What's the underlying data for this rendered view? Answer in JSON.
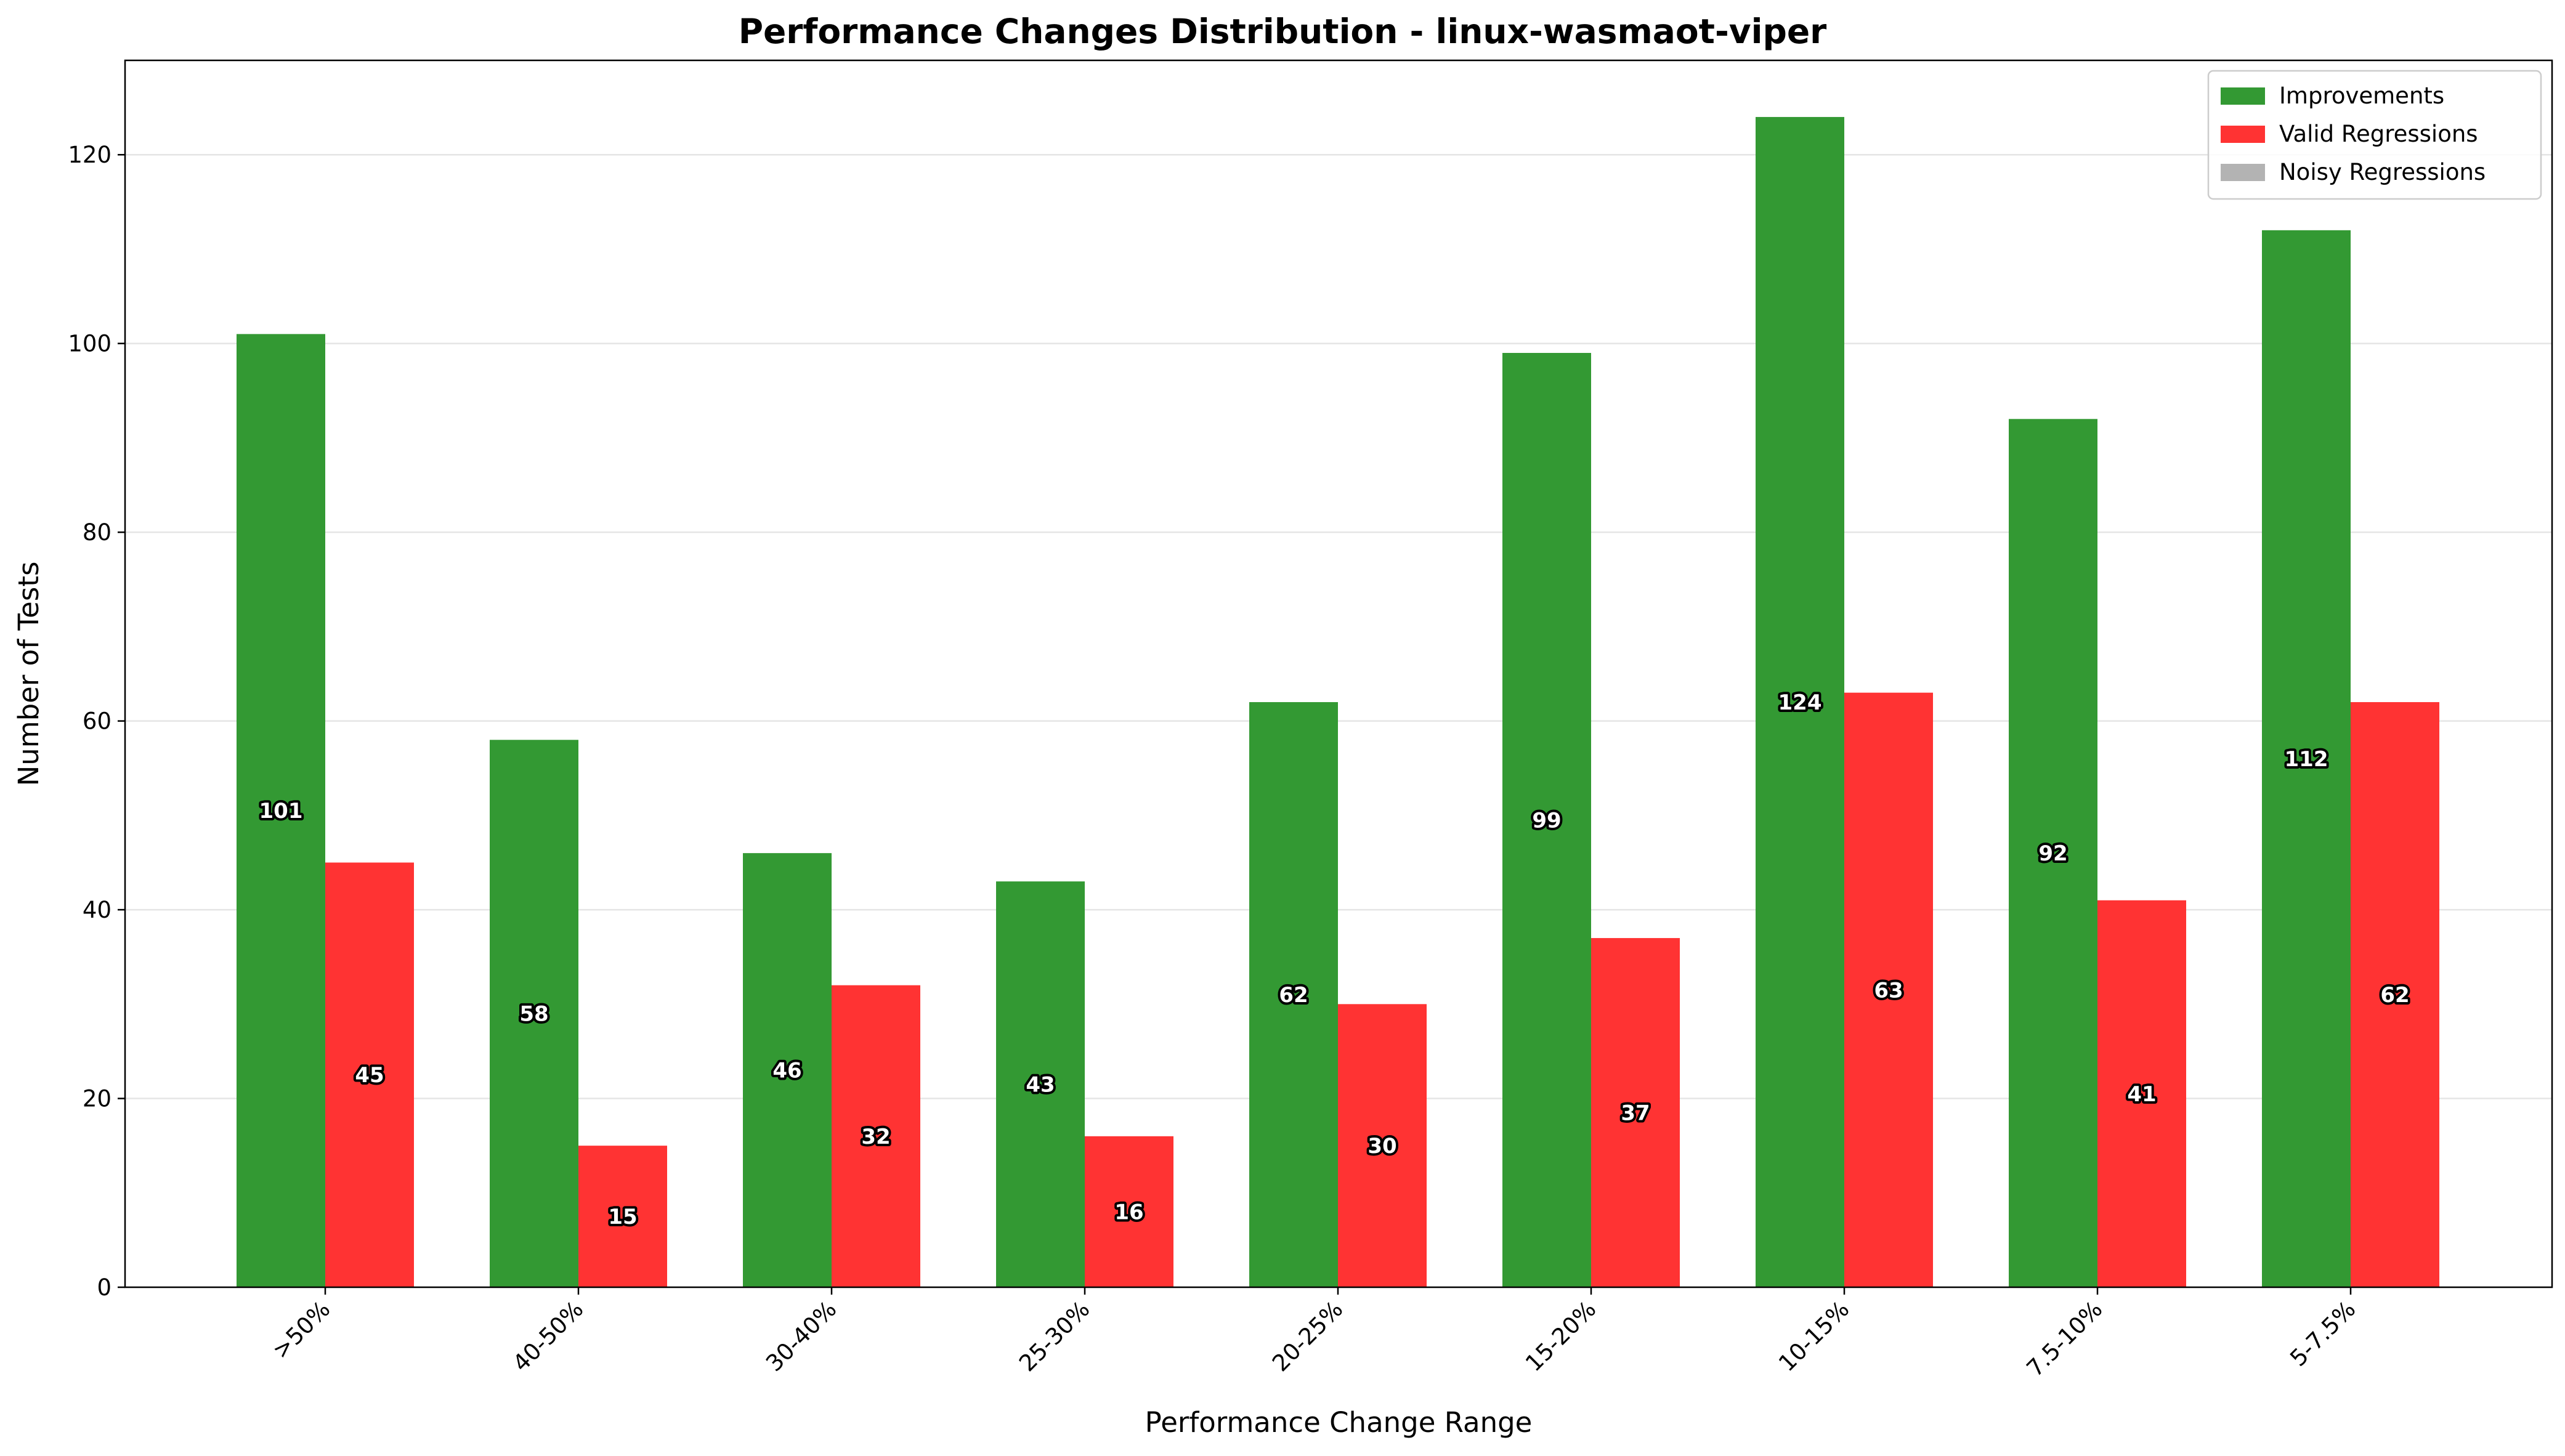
{
  "chart_data": {
    "type": "bar",
    "title": "Performance Changes Distribution - linux-wasmaot-viper",
    "xlabel": "Performance Change Range",
    "ylabel": "Number of Tests",
    "categories": [
      ">50%",
      "40-50%",
      "30-40%",
      "25-30%",
      "20-25%",
      "15-20%",
      "10-15%",
      "7.5-10%",
      "5-7.5%"
    ],
    "series": [
      {
        "name": "Improvements",
        "color": "#339933",
        "values": [
          101,
          58,
          46,
          43,
          62,
          99,
          124,
          92,
          112
        ]
      },
      {
        "name": "Valid Regressions",
        "color": "#ff3333",
        "values": [
          45,
          15,
          32,
          16,
          30,
          37,
          63,
          41,
          62
        ]
      },
      {
        "name": "Noisy Regressions",
        "color": "#b3b3b3",
        "values": [
          0,
          0,
          0,
          0,
          0,
          0,
          0,
          0,
          0
        ]
      }
    ],
    "ylim": [
      0,
      130
    ],
    "yticks": [
      0,
      20,
      40,
      60,
      80,
      100,
      120
    ],
    "grid": "y",
    "legend_position": "top-right"
  }
}
